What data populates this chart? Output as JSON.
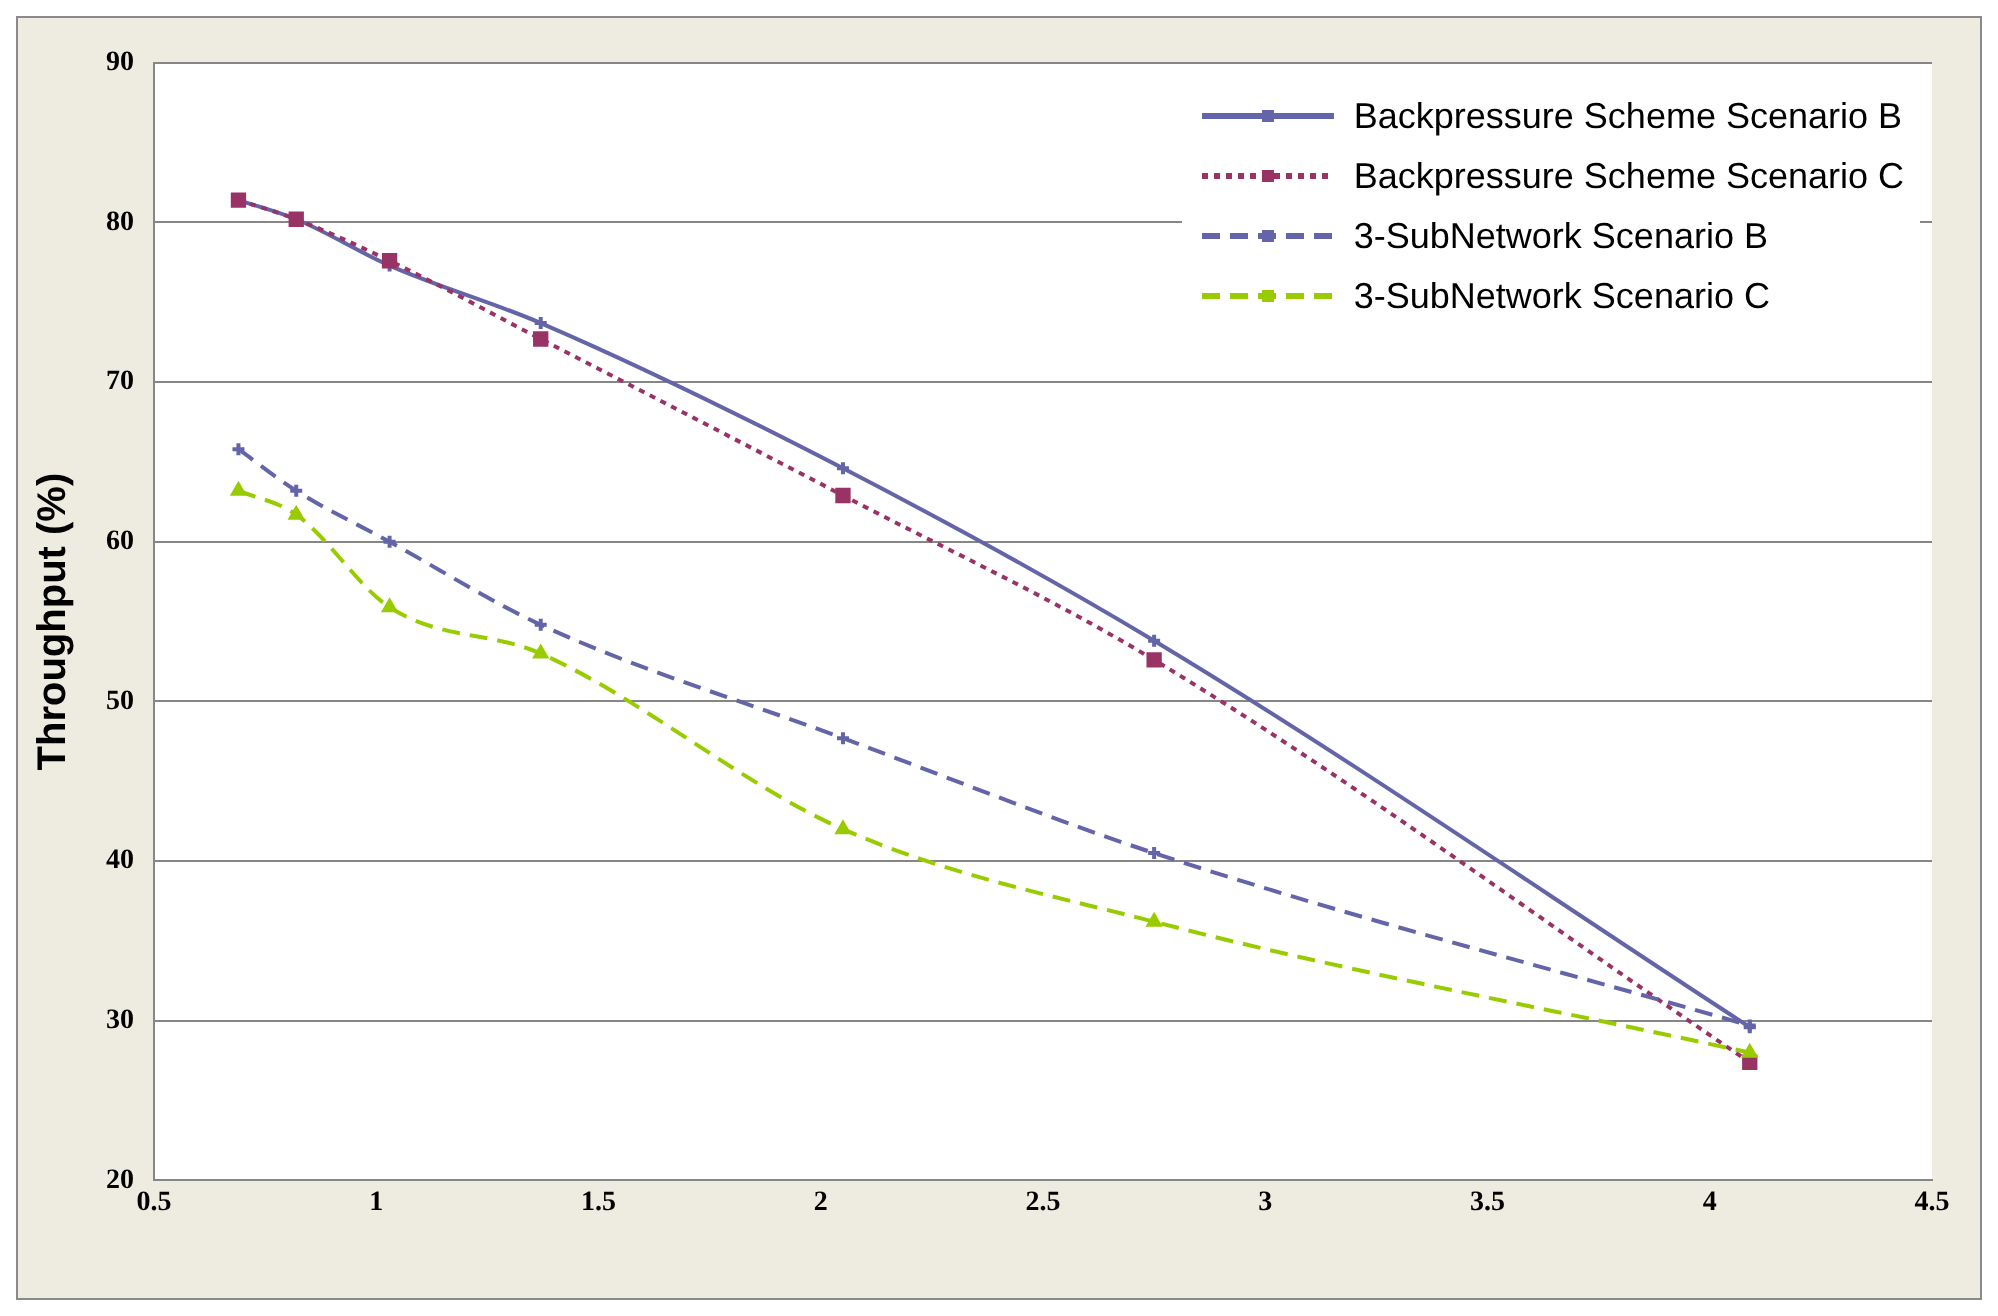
{
  "chart_data": {
    "type": "line",
    "ylabel": "Throughput (%)",
    "xlim": [
      0.5,
      4.5
    ],
    "xticks": [
      0.5,
      1,
      1.5,
      2,
      2.5,
      3,
      3.5,
      4,
      4.5
    ],
    "ylim": [
      20,
      90
    ],
    "yticks": [
      20,
      30,
      40,
      50,
      60,
      70,
      80,
      90
    ],
    "grid": "y",
    "legend": "top right",
    "x": [
      0.69,
      0.82,
      1.03,
      1.37,
      2.05,
      2.75,
      4.09
    ],
    "series": [
      {
        "name": "Backpressure Scheme Scenario B",
        "color": "#6464a8",
        "marker": "cross",
        "line_style": "solid",
        "values": [
          81.4,
          80.2,
          77.3,
          73.7,
          64.6,
          53.8,
          29.6
        ]
      },
      {
        "name": "Backpressure Scheme Scenario C",
        "color": "#993366",
        "marker": "square",
        "line_style": "dotted",
        "values": [
          81.4,
          80.2,
          77.6,
          72.7,
          62.9,
          52.6,
          27.4
        ]
      },
      {
        "name": "3-SubNetwork Scenario B",
        "color": "#6464a8",
        "marker": "cross",
        "line_style": "dashed",
        "values": [
          65.8,
          63.2,
          60.0,
          54.8,
          47.7,
          40.5,
          29.7
        ]
      },
      {
        "name": "3-SubNetwork Scenario C",
        "color": "#99cc00",
        "marker": "triangle",
        "line_style": "dashed",
        "values": [
          63.2,
          61.7,
          55.9,
          53.0,
          42.0,
          36.2,
          28.0
        ]
      }
    ]
  }
}
